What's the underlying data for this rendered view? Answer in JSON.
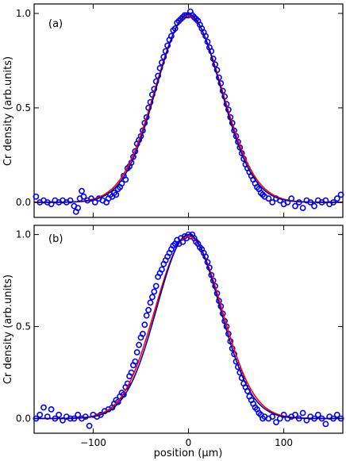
{
  "chart_data": [
    {
      "type": "scatter",
      "panel_label": "(a)",
      "ylabel": "Cr density (arb.units)",
      "xlabel": "",
      "xlim": [
        -162,
        162
      ],
      "ylim": [
        -0.08,
        1.05
      ],
      "xticks": [
        -100,
        0,
        100
      ],
      "xtick_labels": [
        "",
        "",
        ""
      ],
      "yticks": [
        0.0,
        0.5,
        1.0
      ],
      "ytick_labels": [
        "0.0",
        "0.5",
        "1.0"
      ],
      "grid": false,
      "legend": "none",
      "series": [
        {
          "kind": "markers",
          "color": "#0000ff",
          "points": [
            [
              -160,
              0.03
            ],
            [
              -156,
              0.0
            ],
            [
              -152,
              0.01
            ],
            [
              -148,
              0.0
            ],
            [
              -144,
              -0.01
            ],
            [
              -140,
              0.01
            ],
            [
              -136,
              0.0
            ],
            [
              -132,
              0.01
            ],
            [
              -128,
              0.0
            ],
            [
              -124,
              0.01
            ],
            [
              -120,
              -0.02
            ],
            [
              -118,
              -0.05
            ],
            [
              -116,
              -0.03
            ],
            [
              -114,
              0.02
            ],
            [
              -112,
              0.06
            ],
            [
              -110,
              0.03
            ],
            [
              -106,
              0.01
            ],
            [
              -102,
              0.02
            ],
            [
              -98,
              0.0
            ],
            [
              -94,
              0.02
            ],
            [
              -90,
              0.01
            ],
            [
              -86,
              0.0
            ],
            [
              -84,
              0.02
            ],
            [
              -82,
              0.04
            ],
            [
              -80,
              0.03
            ],
            [
              -78,
              0.05
            ],
            [
              -76,
              0.04
            ],
            [
              -74,
              0.07
            ],
            [
              -72,
              0.08
            ],
            [
              -70,
              0.1
            ],
            [
              -68,
              0.14
            ],
            [
              -66,
              0.12
            ],
            [
              -64,
              0.18
            ],
            [
              -62,
              0.19
            ],
            [
              -60,
              0.21
            ],
            [
              -58,
              0.24
            ],
            [
              -56,
              0.27
            ],
            [
              -54,
              0.31
            ],
            [
              -52,
              0.33
            ],
            [
              -50,
              0.35
            ],
            [
              -48,
              0.38
            ],
            [
              -46,
              0.42
            ],
            [
              -44,
              0.45
            ],
            [
              -42,
              0.5
            ],
            [
              -40,
              0.53
            ],
            [
              -38,
              0.57
            ],
            [
              -36,
              0.6
            ],
            [
              -34,
              0.64
            ],
            [
              -32,
              0.67
            ],
            [
              -30,
              0.71
            ],
            [
              -28,
              0.74
            ],
            [
              -26,
              0.77
            ],
            [
              -24,
              0.8
            ],
            [
              -22,
              0.83
            ],
            [
              -20,
              0.86
            ],
            [
              -18,
              0.88
            ],
            [
              -16,
              0.91
            ],
            [
              -14,
              0.92
            ],
            [
              -12,
              0.95
            ],
            [
              -10,
              0.96
            ],
            [
              -8,
              0.97
            ],
            [
              -6,
              0.98
            ],
            [
              -4,
              0.99
            ],
            [
              -2,
              0.99
            ],
            [
              0,
              0.99
            ],
            [
              2,
              1.01
            ],
            [
              4,
              0.99
            ],
            [
              6,
              0.98
            ],
            [
              8,
              0.97
            ],
            [
              10,
              0.96
            ],
            [
              12,
              0.94
            ],
            [
              14,
              0.92
            ],
            [
              16,
              0.9
            ],
            [
              18,
              0.88
            ],
            [
              20,
              0.85
            ],
            [
              22,
              0.82
            ],
            [
              24,
              0.8
            ],
            [
              26,
              0.76
            ],
            [
              28,
              0.73
            ],
            [
              30,
              0.7
            ],
            [
              32,
              0.66
            ],
            [
              34,
              0.63
            ],
            [
              36,
              0.59
            ],
            [
              38,
              0.56
            ],
            [
              40,
              0.52
            ],
            [
              42,
              0.49
            ],
            [
              44,
              0.45
            ],
            [
              46,
              0.42
            ],
            [
              48,
              0.38
            ],
            [
              50,
              0.35
            ],
            [
              52,
              0.32
            ],
            [
              54,
              0.29
            ],
            [
              56,
              0.26
            ],
            [
              58,
              0.23
            ],
            [
              60,
              0.2
            ],
            [
              62,
              0.18
            ],
            [
              64,
              0.16
            ],
            [
              66,
              0.14
            ],
            [
              68,
              0.12
            ],
            [
              70,
              0.1
            ],
            [
              72,
              0.08
            ],
            [
              74,
              0.07
            ],
            [
              76,
              0.05
            ],
            [
              78,
              0.04
            ],
            [
              80,
              0.03
            ],
            [
              84,
              0.02
            ],
            [
              88,
              0.0
            ],
            [
              92,
              0.02
            ],
            [
              96,
              0.01
            ],
            [
              100,
              -0.01
            ],
            [
              104,
              0.0
            ],
            [
              108,
              0.02
            ],
            [
              112,
              -0.02
            ],
            [
              116,
              0.0
            ],
            [
              120,
              -0.03
            ],
            [
              124,
              0.01
            ],
            [
              128,
              0.0
            ],
            [
              132,
              -0.02
            ],
            [
              136,
              0.01
            ],
            [
              140,
              0.0
            ],
            [
              144,
              0.01
            ],
            [
              148,
              -0.01
            ],
            [
              152,
              0.0
            ],
            [
              156,
              0.02
            ],
            [
              160,
              0.04
            ]
          ]
        },
        {
          "kind": "line",
          "color": "#ff0000",
          "amplitude": 0.99,
          "center": 0,
          "sigma": 35.0
        },
        {
          "kind": "line",
          "color": "#0000aa",
          "amplitude": 0.995,
          "center": 0,
          "sigma": 34.0
        }
      ]
    },
    {
      "type": "scatter",
      "panel_label": "(b)",
      "ylabel": "Cr density (arb.units)",
      "xlabel": "position (μm)",
      "xlim": [
        -162,
        162
      ],
      "ylim": [
        -0.08,
        1.05
      ],
      "xticks": [
        -100,
        0,
        100
      ],
      "xtick_labels": [
        "−100",
        "0",
        "100"
      ],
      "yticks": [
        0.0,
        0.5,
        1.0
      ],
      "ytick_labels": [
        "0.0",
        "0.5",
        "1.0"
      ],
      "grid": false,
      "legend": "none",
      "series": [
        {
          "kind": "markers",
          "color": "#0000ff",
          "points": [
            [
              -160,
              0.0
            ],
            [
              -156,
              0.02
            ],
            [
              -152,
              0.06
            ],
            [
              -148,
              0.01
            ],
            [
              -144,
              0.05
            ],
            [
              -140,
              0.0
            ],
            [
              -136,
              0.02
            ],
            [
              -132,
              -0.01
            ],
            [
              -128,
              0.01
            ],
            [
              -124,
              0.0
            ],
            [
              -120,
              0.0
            ],
            [
              -116,
              0.02
            ],
            [
              -112,
              0.0
            ],
            [
              -108,
              0.01
            ],
            [
              -104,
              -0.04
            ],
            [
              -100,
              0.02
            ],
            [
              -96,
              0.01
            ],
            [
              -92,
              0.02
            ],
            [
              -88,
              0.04
            ],
            [
              -84,
              0.05
            ],
            [
              -80,
              0.06
            ],
            [
              -78,
              0.08
            ],
            [
              -76,
              0.1
            ],
            [
              -74,
              0.09
            ],
            [
              -72,
              0.12
            ],
            [
              -70,
              0.14
            ],
            [
              -68,
              0.13
            ],
            [
              -66,
              0.17
            ],
            [
              -64,
              0.19
            ],
            [
              -62,
              0.23
            ],
            [
              -60,
              0.25
            ],
            [
              -58,
              0.29
            ],
            [
              -56,
              0.31
            ],
            [
              -54,
              0.36
            ],
            [
              -52,
              0.4
            ],
            [
              -50,
              0.44
            ],
            [
              -48,
              0.46
            ],
            [
              -46,
              0.51
            ],
            [
              -44,
              0.56
            ],
            [
              -42,
              0.59
            ],
            [
              -40,
              0.63
            ],
            [
              -38,
              0.66
            ],
            [
              -36,
              0.69
            ],
            [
              -34,
              0.72
            ],
            [
              -32,
              0.77
            ],
            [
              -30,
              0.79
            ],
            [
              -28,
              0.81
            ],
            [
              -26,
              0.84
            ],
            [
              -24,
              0.86
            ],
            [
              -22,
              0.88
            ],
            [
              -20,
              0.9
            ],
            [
              -18,
              0.92
            ],
            [
              -16,
              0.94
            ],
            [
              -14,
              0.95
            ],
            [
              -12,
              0.97
            ],
            [
              -10,
              0.95
            ],
            [
              -8,
              0.98
            ],
            [
              -6,
              0.96
            ],
            [
              -4,
              0.99
            ],
            [
              -2,
              0.98
            ],
            [
              0,
              1.0
            ],
            [
              2,
              0.99
            ],
            [
              4,
              1.0
            ],
            [
              6,
              0.98
            ],
            [
              8,
              0.96
            ],
            [
              10,
              0.95
            ],
            [
              12,
              0.93
            ],
            [
              14,
              0.92
            ],
            [
              16,
              0.9
            ],
            [
              18,
              0.88
            ],
            [
              20,
              0.85
            ],
            [
              22,
              0.82
            ],
            [
              24,
              0.78
            ],
            [
              26,
              0.75
            ],
            [
              28,
              0.72
            ],
            [
              30,
              0.68
            ],
            [
              32,
              0.64
            ],
            [
              34,
              0.61
            ],
            [
              36,
              0.57
            ],
            [
              38,
              0.53
            ],
            [
              40,
              0.5
            ],
            [
              42,
              0.46
            ],
            [
              44,
              0.42
            ],
            [
              46,
              0.38
            ],
            [
              48,
              0.35
            ],
            [
              50,
              0.31
            ],
            [
              52,
              0.28
            ],
            [
              54,
              0.25
            ],
            [
              56,
              0.22
            ],
            [
              58,
              0.19
            ],
            [
              60,
              0.17
            ],
            [
              62,
              0.15
            ],
            [
              64,
              0.12
            ],
            [
              66,
              0.1
            ],
            [
              68,
              0.08
            ],
            [
              70,
              0.06
            ],
            [
              72,
              0.05
            ],
            [
              74,
              0.03
            ],
            [
              76,
              0.02
            ],
            [
              78,
              0.0
            ],
            [
              80,
              0.01
            ],
            [
              84,
              0.0
            ],
            [
              88,
              0.01
            ],
            [
              92,
              -0.02
            ],
            [
              96,
              0.0
            ],
            [
              100,
              0.02
            ],
            [
              104,
              0.0
            ],
            [
              108,
              0.01
            ],
            [
              112,
              0.02
            ],
            [
              116,
              0.0
            ],
            [
              120,
              0.03
            ],
            [
              124,
              -0.01
            ],
            [
              128,
              0.01
            ],
            [
              132,
              0.0
            ],
            [
              136,
              0.02
            ],
            [
              140,
              0.0
            ],
            [
              144,
              -0.03
            ],
            [
              148,
              0.01
            ],
            [
              152,
              0.0
            ],
            [
              156,
              0.02
            ],
            [
              160,
              0.0
            ]
          ]
        },
        {
          "kind": "line",
          "color": "#ff0000",
          "amplitude": 0.99,
          "center": 0,
          "sigma": 34.5,
          "flatten": 0.12
        },
        {
          "kind": "line",
          "color": "#0000aa",
          "amplitude": 1.0,
          "center": 0,
          "sigma": 33.0
        }
      ]
    }
  ]
}
